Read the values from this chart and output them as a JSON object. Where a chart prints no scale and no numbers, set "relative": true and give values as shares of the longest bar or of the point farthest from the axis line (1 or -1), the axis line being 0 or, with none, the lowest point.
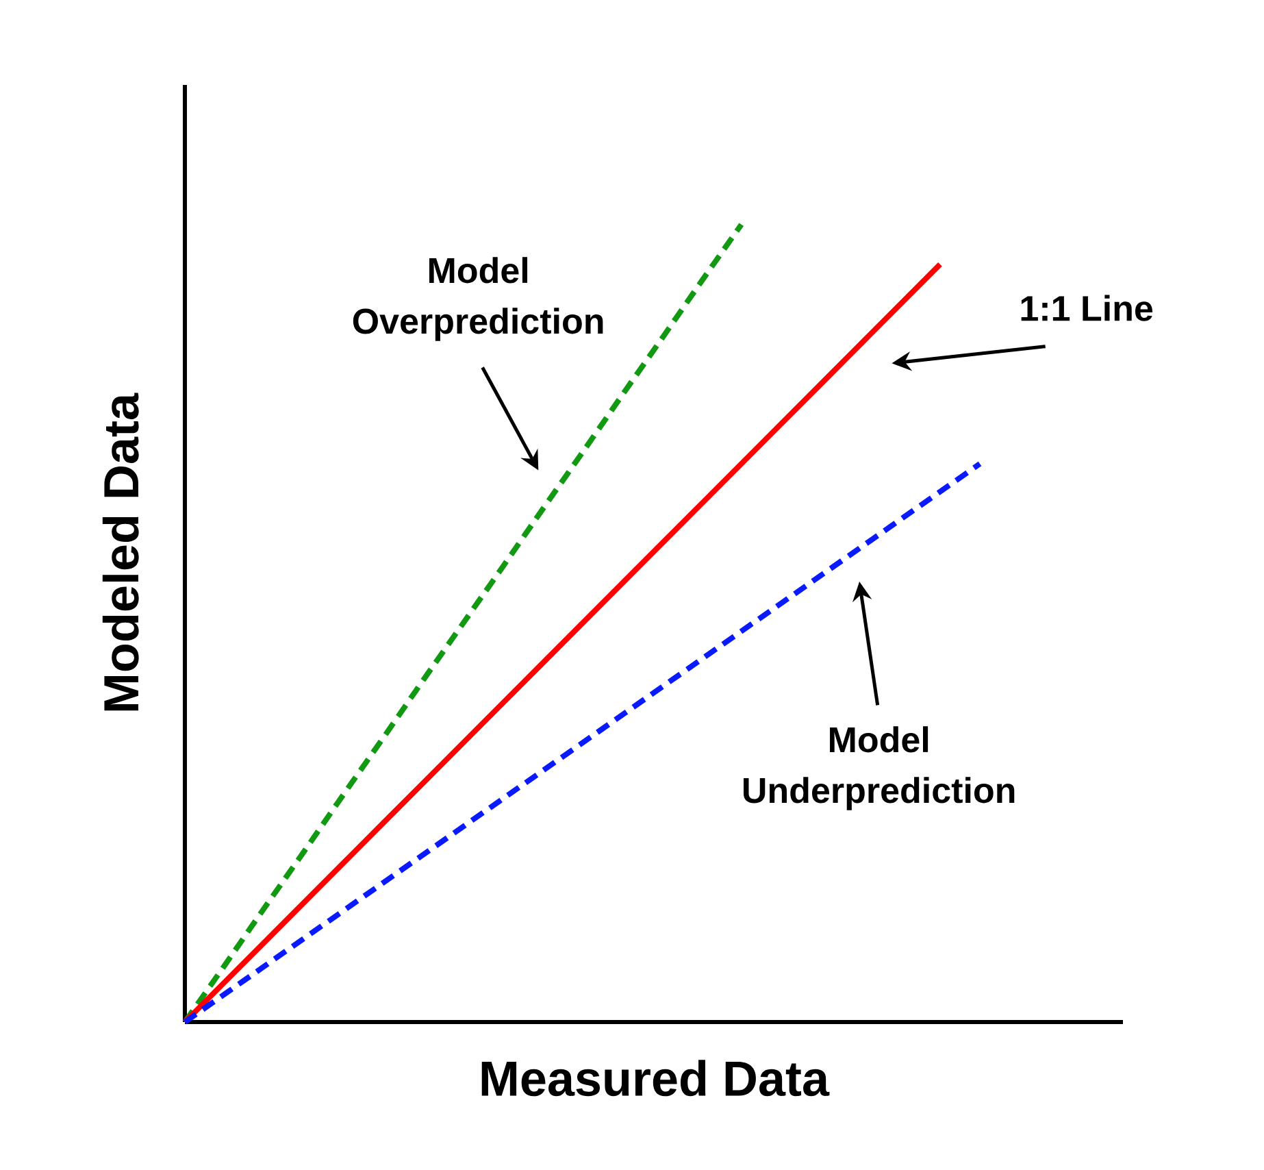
{
  "chart_data": {
    "type": "line",
    "relative": true,
    "xlabel": "Measured Data",
    "ylabel": "Modeled Data",
    "tick_labels": false,
    "marker": "none",
    "categories": [
      null,
      null,
      null,
      null,
      null,
      null,
      null,
      null,
      null,
      null,
      null,
      null,
      null,
      null,
      null,
      null,
      null,
      null,
      null,
      null,
      null
    ],
    "series": [
      {
        "color": "#119911",
        "line_style": "dashed",
        "values": [
          0,
          0.071,
          0.143,
          0.214,
          0.286,
          0.357,
          0.429,
          0.5,
          0.571,
          0.643,
          0.714,
          0.786,
          0.857,
          0.929,
          1,
          null,
          null,
          null,
          null,
          null,
          null
        ]
      },
      {
        "color": "#ff0000",
        "line_style": "solid",
        "values": [
          0,
          0.05,
          0.1,
          0.15,
          0.2,
          0.25,
          0.3,
          0.35,
          0.4,
          0.45,
          0.5,
          0.55,
          0.6,
          0.65,
          0.7,
          0.75,
          0.8,
          0.85,
          0.9,
          0.95,
          null
        ]
      },
      {
        "color": "#0a1aff",
        "line_style": "dashed",
        "values": [
          0,
          0.035,
          0.07,
          0.105,
          0.14,
          0.175,
          0.21,
          0.245,
          0.28,
          0.315,
          0.35,
          0.385,
          0.42,
          0.455,
          0.49,
          0.525,
          0.56,
          0.595,
          0.63,
          0.665,
          0.7
        ]
      }
    ],
    "annotations": [
      "Model Overprediction",
      "1:1 Line",
      "Model Underprediction"
    ]
  }
}
